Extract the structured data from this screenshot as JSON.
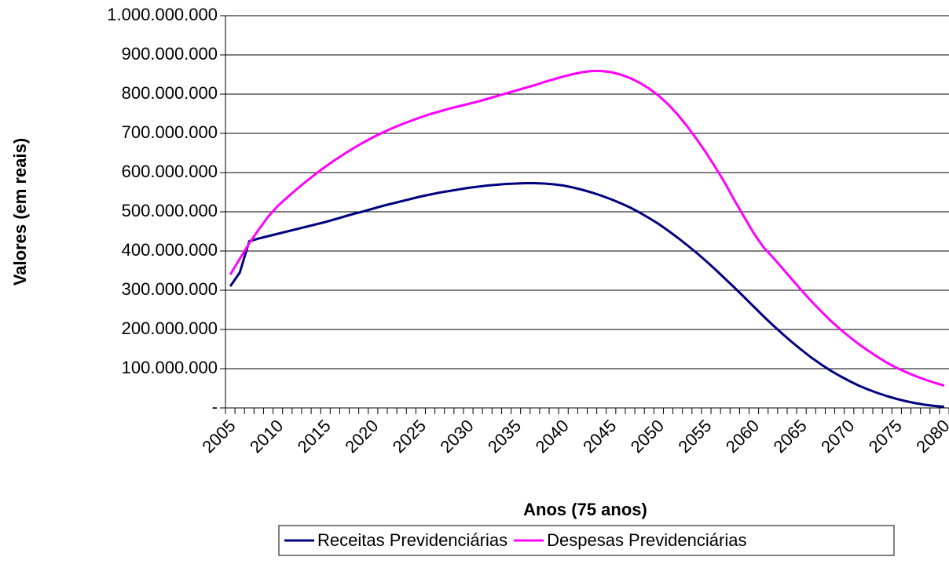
{
  "chart_data": {
    "type": "line",
    "xlabel": "Anos (75 anos)",
    "ylabel": "Valores (em reais)",
    "categories": [
      "2005",
      null,
      null,
      null,
      null,
      "2010",
      null,
      null,
      null,
      null,
      "2015",
      null,
      null,
      null,
      null,
      "2020",
      null,
      null,
      null,
      null,
      "2025",
      null,
      null,
      null,
      null,
      "2030",
      null,
      null,
      null,
      null,
      "2035",
      null,
      null,
      null,
      null,
      "2040",
      null,
      null,
      null,
      null,
      "2045",
      null,
      null,
      null,
      null,
      "2050",
      null,
      null,
      null,
      null,
      "2055",
      null,
      null,
      null,
      null,
      "2060",
      null,
      null,
      null,
      null,
      "2065",
      null,
      null,
      null,
      null,
      "2070",
      null,
      null,
      null,
      null,
      "2075",
      null,
      null,
      null,
      null,
      "2080"
    ],
    "series": [
      {
        "name": "Receitas Previdenciárias",
        "color": "#000080",
        "values": [
          310000000,
          345000000,
          425000000,
          432000000,
          438000000,
          444000000,
          450000000,
          456000000,
          462000000,
          468000000,
          474000000,
          481000000,
          488000000,
          495000000,
          501000000,
          508000000,
          515000000,
          521000000,
          527000000,
          533000000,
          539000000,
          544000000,
          549000000,
          553000000,
          557000000,
          561000000,
          564000000,
          567000000,
          569000000,
          571000000,
          572000000,
          573000000,
          573000000,
          572000000,
          570000000,
          567000000,
          562000000,
          556000000,
          549000000,
          541000000,
          532000000,
          522000000,
          511000000,
          498000000,
          484000000,
          469000000,
          452000000,
          434000000,
          415000000,
          395000000,
          374000000,
          352000000,
          329000000,
          306000000,
          282000000,
          258000000,
          234000000,
          211000000,
          189000000,
          168000000,
          148000000,
          129000000,
          112000000,
          96000000,
          82000000,
          69000000,
          57000000,
          47000000,
          38000000,
          30000000,
          23000000,
          17000000,
          12000000,
          8000000,
          5000000,
          3000000
        ]
      },
      {
        "name": "Despesas Previdenciárias",
        "color": "#ff00ff",
        "values": [
          340000000,
          380000000,
          420000000,
          455000000,
          488000000,
          515000000,
          537000000,
          558000000,
          578000000,
          597000000,
          615000000,
          632000000,
          648000000,
          663000000,
          677000000,
          690000000,
          702000000,
          713000000,
          723000000,
          732000000,
          741000000,
          749000000,
          756000000,
          763000000,
          769000000,
          775000000,
          781000000,
          788000000,
          795000000,
          802000000,
          809000000,
          816000000,
          823000000,
          831000000,
          838000000,
          845000000,
          851000000,
          856000000,
          859000000,
          859000000,
          856000000,
          850000000,
          841000000,
          829000000,
          814000000,
          796000000,
          774000000,
          748000000,
          718000000,
          685000000,
          650000000,
          612000000,
          572000000,
          528000000,
          486000000,
          445000000,
          410000000,
          384000000,
          356000000,
          328000000,
          300000000,
          273000000,
          248000000,
          224000000,
          202000000,
          182000000,
          163000000,
          146000000,
          130000000,
          115000000,
          102000000,
          91000000,
          81000000,
          72000000,
          64000000,
          57000000
        ]
      }
    ],
    "ylim": [
      0,
      1000000000
    ],
    "yticks": [
      {
        "value": 0,
        "label": "-"
      },
      {
        "value": 100000000,
        "label": "100.000.000"
      },
      {
        "value": 200000000,
        "label": "200.000.000"
      },
      {
        "value": 300000000,
        "label": "300.000.000"
      },
      {
        "value": 400000000,
        "label": "400.000.000"
      },
      {
        "value": 500000000,
        "label": "500.000.000"
      },
      {
        "value": 600000000,
        "label": "600.000.000"
      },
      {
        "value": 700000000,
        "label": "700.000.000"
      },
      {
        "value": 800000000,
        "label": "800.000.000"
      },
      {
        "value": 900000000,
        "label": "900.000.000"
      },
      {
        "value": 1000000000,
        "label": "1.000.000.000"
      }
    ],
    "grid": true,
    "legend": "bottom"
  }
}
